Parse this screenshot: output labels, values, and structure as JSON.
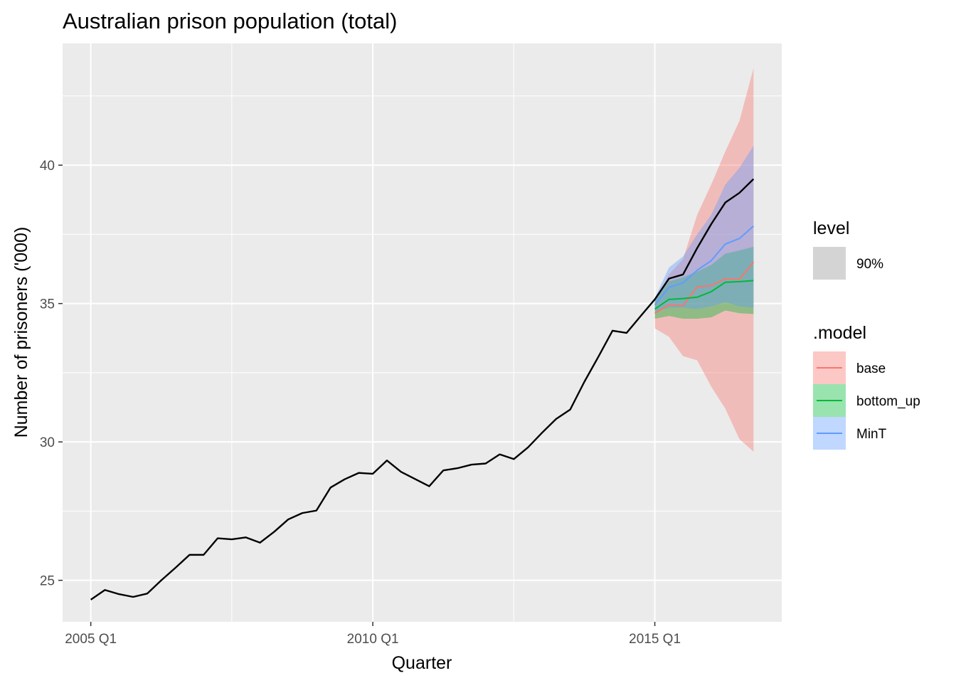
{
  "chart_data": {
    "type": "line",
    "title": "Australian prison population (total)",
    "xlabel": "Quarter",
    "ylabel": "Number of prisoners ('000)",
    "x_range": [
      "2004 Q3",
      "2017 Q2"
    ],
    "ylim": [
      23.5,
      44.4
    ],
    "x_ticks": [
      "2005 Q1",
      "2010 Q1",
      "2015 Q1"
    ],
    "y_ticks": [
      25,
      30,
      35,
      40
    ],
    "grid": true,
    "legend": {
      "placement": "right",
      "level_title": "level",
      "level_label": "90%",
      "model_title": ".model",
      "models": [
        "base",
        "bottom_up",
        "MinT"
      ]
    },
    "history": {
      "x": [
        "2005 Q1",
        "2005 Q2",
        "2005 Q3",
        "2005 Q4",
        "2006 Q1",
        "2006 Q2",
        "2006 Q3",
        "2006 Q4",
        "2007 Q1",
        "2007 Q2",
        "2007 Q3",
        "2007 Q4",
        "2008 Q1",
        "2008 Q2",
        "2008 Q3",
        "2008 Q4",
        "2009 Q1",
        "2009 Q2",
        "2009 Q3",
        "2009 Q4",
        "2010 Q1",
        "2010 Q2",
        "2010 Q3",
        "2010 Q4",
        "2011 Q1",
        "2011 Q2",
        "2011 Q3",
        "2011 Q4",
        "2012 Q1",
        "2012 Q2",
        "2012 Q3",
        "2012 Q4",
        "2013 Q1",
        "2013 Q2",
        "2013 Q3",
        "2013 Q4",
        "2014 Q1",
        "2014 Q2",
        "2014 Q3",
        "2014 Q4",
        "2015 Q1",
        "2015 Q2",
        "2015 Q3",
        "2015 Q4",
        "2016 Q1",
        "2016 Q2",
        "2016 Q3",
        "2016 Q4"
      ],
      "values": [
        24.3,
        24.65,
        24.5,
        24.4,
        24.52,
        25.0,
        25.45,
        25.92,
        25.92,
        26.52,
        26.48,
        26.55,
        26.36,
        26.75,
        27.2,
        27.43,
        27.52,
        28.35,
        28.65,
        28.88,
        28.85,
        29.33,
        28.92,
        28.66,
        28.4,
        28.97,
        29.05,
        29.18,
        29.22,
        29.55,
        29.38,
        29.8,
        30.33,
        30.83,
        31.17,
        32.17,
        33.08,
        34.02,
        33.94,
        34.55,
        35.15,
        35.9,
        36.05,
        37.0,
        37.87,
        38.65,
        39.0,
        39.5
      ]
    },
    "series": [
      {
        "name": "base",
        "color": "#F8766D",
        "x": [
          "2015 Q1",
          "2015 Q2",
          "2015 Q3",
          "2015 Q4",
          "2016 Q1",
          "2016 Q2",
          "2016 Q3",
          "2016 Q4"
        ],
        "values": [
          34.65,
          34.95,
          34.92,
          35.6,
          35.65,
          35.9,
          35.87,
          36.5
        ],
        "lower": [
          34.1,
          33.8,
          33.1,
          32.95,
          32.0,
          31.2,
          30.1,
          29.65
        ],
        "upper": [
          35.05,
          36.05,
          36.6,
          38.2,
          39.3,
          40.5,
          41.6,
          43.5
        ]
      },
      {
        "name": "bottom_up",
        "color": "#00BA38",
        "x": [
          "2015 Q1",
          "2015 Q2",
          "2015 Q3",
          "2015 Q4",
          "2016 Q1",
          "2016 Q2",
          "2016 Q3",
          "2016 Q4"
        ],
        "values": [
          34.8,
          35.15,
          35.18,
          35.23,
          35.43,
          35.77,
          35.79,
          35.83
        ],
        "lower": [
          34.45,
          34.55,
          34.45,
          34.45,
          34.5,
          34.75,
          34.65,
          34.62
        ],
        "upper": [
          35.15,
          35.8,
          35.95,
          36.15,
          36.4,
          36.8,
          36.92,
          37.05
        ]
      },
      {
        "name": "MinT",
        "color": "#619CFF",
        "x": [
          "2015 Q1",
          "2015 Q2",
          "2015 Q3",
          "2015 Q4",
          "2016 Q1",
          "2016 Q2",
          "2016 Q3",
          "2016 Q4"
        ],
        "values": [
          34.95,
          35.58,
          35.75,
          36.2,
          36.55,
          37.15,
          37.35,
          37.8
        ],
        "lower": [
          34.7,
          34.85,
          34.85,
          34.8,
          34.9,
          35.05,
          34.9,
          34.85
        ],
        "upper": [
          35.2,
          36.3,
          36.7,
          37.5,
          38.2,
          39.3,
          39.9,
          40.7
        ]
      }
    ]
  }
}
